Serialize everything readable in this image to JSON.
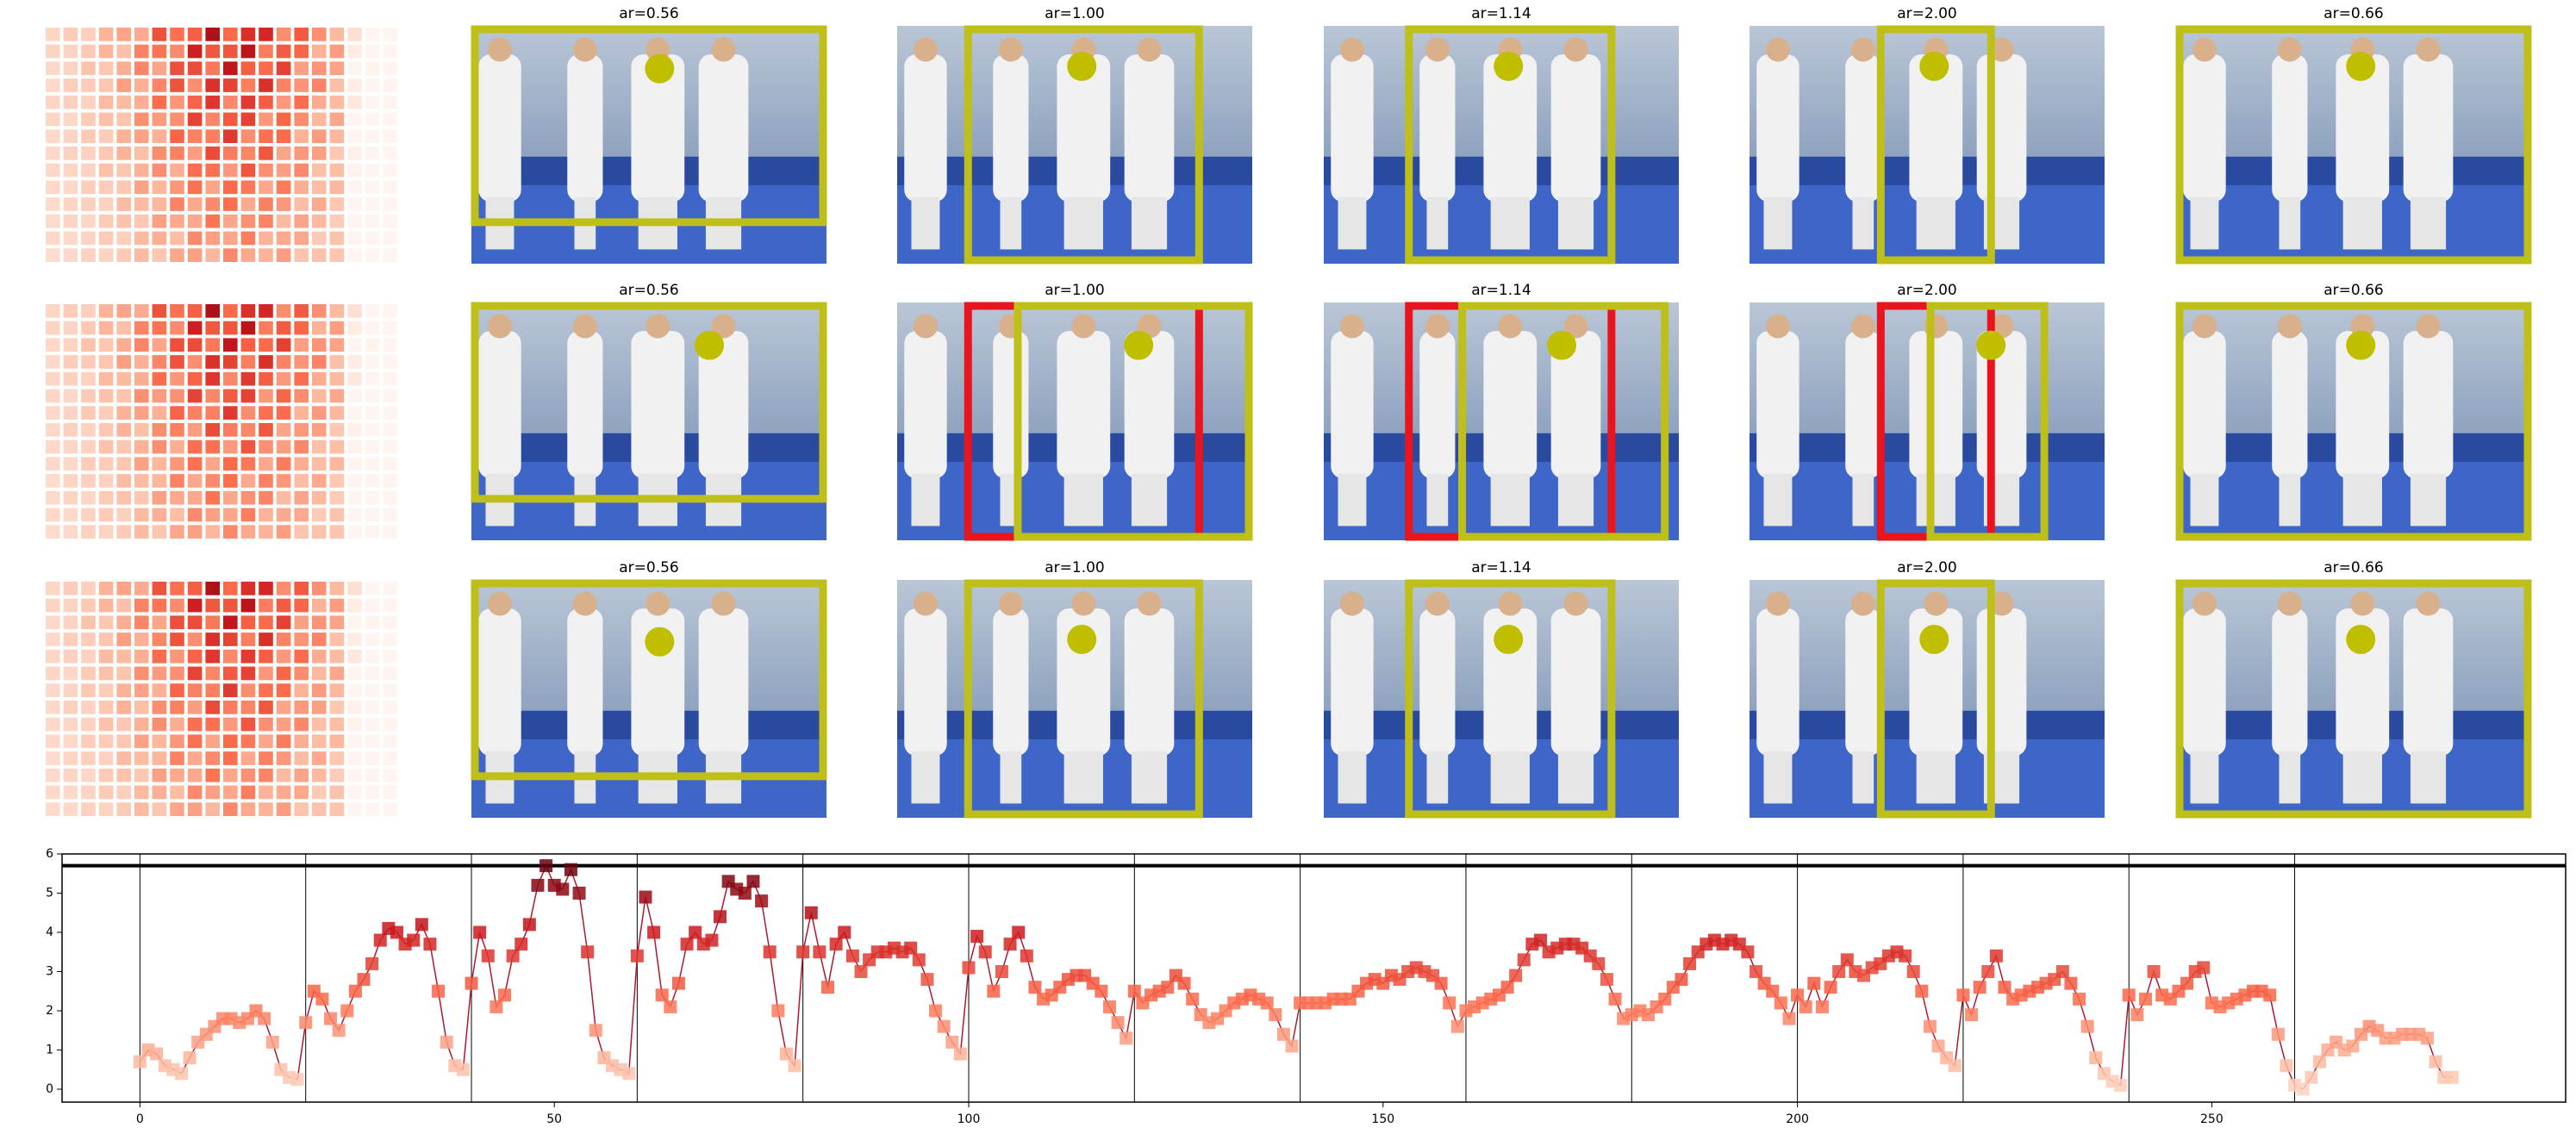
{
  "panels": {
    "titles": [
      [
        "ar=0.56",
        "ar=1.00",
        "ar=1.14",
        "ar=2.00",
        "ar=0.66"
      ],
      [
        "ar=0.56",
        "ar=1.00",
        "ar=1.14",
        "ar=2.00",
        "ar=0.66"
      ],
      [
        "ar=0.56",
        "ar=1.00",
        "ar=1.14",
        "ar=2.00",
        "ar=0.66"
      ]
    ]
  },
  "chart_data": {
    "type": "line",
    "x": [
      0,
      1,
      2,
      3,
      4,
      5,
      6,
      7,
      8,
      9,
      10,
      11,
      12,
      13,
      14,
      15,
      16,
      17,
      18,
      19,
      20,
      21,
      22,
      23,
      24,
      25,
      26,
      27,
      28,
      29,
      30,
      31,
      32,
      33,
      34,
      35,
      36,
      37,
      38,
      39,
      40,
      41,
      42,
      43,
      44,
      45,
      46,
      47,
      48,
      49,
      50,
      51,
      52,
      53,
      54,
      55,
      56,
      57,
      58,
      59,
      60,
      61,
      62,
      63,
      64,
      65,
      66,
      67,
      68,
      69,
      70,
      71,
      72,
      73,
      74,
      75,
      76,
      77,
      78,
      79,
      80,
      81,
      82,
      83,
      84,
      85,
      86,
      87,
      88,
      89,
      90,
      91,
      92,
      93,
      94,
      95,
      96,
      97,
      98,
      99,
      100,
      101,
      102,
      103,
      104,
      105,
      106,
      107,
      108,
      109,
      110,
      111,
      112,
      113,
      114,
      115,
      116,
      117,
      118,
      119,
      120,
      121,
      122,
      123,
      124,
      125,
      126,
      127,
      128,
      129,
      130,
      131,
      132,
      133,
      134,
      135,
      136,
      137,
      138,
      139,
      140,
      141,
      142,
      143,
      144,
      145,
      146,
      147,
      148,
      149,
      150,
      151,
      152,
      153,
      154,
      155,
      156,
      157,
      158,
      159,
      160,
      161,
      162,
      163,
      164,
      165,
      166,
      167,
      168,
      169,
      170,
      171,
      172,
      173,
      174,
      175,
      176,
      177,
      178,
      179,
      180,
      181,
      182,
      183,
      184,
      185,
      186,
      187,
      188,
      189,
      190,
      191,
      192,
      193,
      194,
      195,
      196,
      197,
      198,
      199,
      200,
      201,
      202,
      203,
      204,
      205,
      206,
      207,
      208,
      209,
      210,
      211,
      212,
      213,
      214,
      215,
      216,
      217,
      218,
      219,
      220,
      221,
      222,
      223,
      224,
      225,
      226,
      227,
      228,
      229,
      230,
      231,
      232,
      233,
      234,
      235,
      236,
      237,
      238,
      239,
      240,
      241,
      242,
      243,
      244,
      245,
      246,
      247,
      248,
      249,
      250,
      251,
      252,
      253,
      254,
      255,
      256,
      257,
      258,
      259,
      260,
      261,
      262,
      263,
      264,
      265,
      266,
      267,
      268,
      269,
      270,
      271,
      272,
      273,
      274,
      275,
      276,
      277,
      278,
      279
    ],
    "values": [
      0.7,
      1.0,
      0.9,
      0.6,
      0.5,
      0.4,
      0.8,
      1.2,
      1.4,
      1.6,
      1.8,
      1.8,
      1.7,
      1.8,
      2.0,
      1.8,
      1.2,
      0.5,
      0.3,
      0.25,
      1.7,
      2.5,
      2.3,
      1.8,
      1.5,
      2.0,
      2.5,
      2.8,
      3.2,
      3.8,
      4.1,
      4.0,
      3.7,
      3.8,
      4.2,
      3.7,
      2.5,
      1.2,
      0.6,
      0.5,
      2.7,
      4.0,
      3.4,
      2.1,
      2.4,
      3.4,
      3.7,
      4.2,
      5.2,
      5.7,
      5.2,
      5.1,
      5.6,
      5.0,
      3.5,
      1.5,
      0.8,
      0.6,
      0.5,
      0.4,
      3.4,
      4.9,
      4.0,
      2.4,
      2.1,
      2.7,
      3.7,
      4.0,
      3.7,
      3.8,
      4.4,
      5.3,
      5.1,
      5.0,
      5.3,
      4.8,
      3.5,
      2.0,
      0.9,
      0.6,
      3.5,
      4.5,
      3.5,
      2.6,
      3.7,
      4.0,
      3.4,
      3.0,
      3.3,
      3.5,
      3.5,
      3.6,
      3.5,
      3.6,
      3.3,
      2.8,
      2.0,
      1.6,
      1.2,
      0.9,
      3.1,
      3.9,
      3.5,
      2.5,
      3.0,
      3.7,
      4.0,
      3.4,
      2.6,
      2.3,
      2.4,
      2.6,
      2.8,
      2.9,
      2.9,
      2.7,
      2.5,
      2.1,
      1.7,
      1.3,
      2.5,
      2.2,
      2.4,
      2.5,
      2.6,
      2.9,
      2.7,
      2.3,
      1.9,
      1.7,
      1.8,
      2.0,
      2.2,
      2.3,
      2.4,
      2.3,
      2.2,
      1.9,
      1.4,
      1.1,
      2.2,
      2.2,
      2.2,
      2.2,
      2.3,
      2.3,
      2.3,
      2.5,
      2.7,
      2.8,
      2.7,
      2.9,
      2.8,
      3.0,
      3.1,
      3.0,
      2.9,
      2.7,
      2.2,
      1.6,
      2.0,
      2.1,
      2.2,
      2.3,
      2.4,
      2.6,
      2.9,
      3.3,
      3.7,
      3.8,
      3.5,
      3.6,
      3.7,
      3.7,
      3.6,
      3.4,
      3.2,
      2.8,
      2.3,
      1.8,
      1.9,
      2.0,
      1.9,
      2.1,
      2.3,
      2.6,
      2.8,
      3.2,
      3.5,
      3.7,
      3.8,
      3.7,
      3.8,
      3.7,
      3.5,
      3.0,
      2.7,
      2.5,
      2.2,
      1.8,
      2.4,
      2.1,
      2.7,
      2.1,
      2.6,
      3.0,
      3.3,
      3.0,
      2.9,
      3.1,
      3.2,
      3.4,
      3.5,
      3.4,
      3.0,
      2.5,
      1.6,
      1.1,
      0.8,
      0.6,
      2.4,
      1.9,
      2.6,
      3.0,
      3.4,
      2.6,
      2.3,
      2.4,
      2.5,
      2.6,
      2.7,
      2.8,
      3.0,
      2.7,
      2.3,
      1.6,
      0.8,
      0.4,
      0.2,
      0.1,
      2.4,
      1.9,
      2.3,
      3.0,
      2.4,
      2.3,
      2.5,
      2.7,
      3.0,
      3.1,
      2.2,
      2.1,
      2.2,
      2.3,
      2.4,
      2.5,
      2.5,
      2.4,
      1.4,
      0.6,
      0.1,
      0.0,
      0.3,
      0.7,
      1.0,
      1.2,
      1.0,
      1.1,
      1.4,
      1.6,
      1.5,
      1.3,
      1.3,
      1.4,
      1.4,
      1.4,
      1.3,
      0.7,
      0.3,
      0.3
    ],
    "color": "#b2182b",
    "vlines": [
      0,
      20,
      40,
      60,
      80,
      100,
      120,
      140,
      160,
      180,
      200,
      220,
      240,
      260
    ],
    "hline": 5.7,
    "xlim": [
      -9.4,
      292.7
    ],
    "ylim": [
      -0.33,
      6.0
    ],
    "xticks": [
      0,
      50,
      100,
      150,
      200,
      250
    ],
    "yticks": [
      0,
      1,
      2,
      3,
      4,
      5,
      6
    ]
  }
}
